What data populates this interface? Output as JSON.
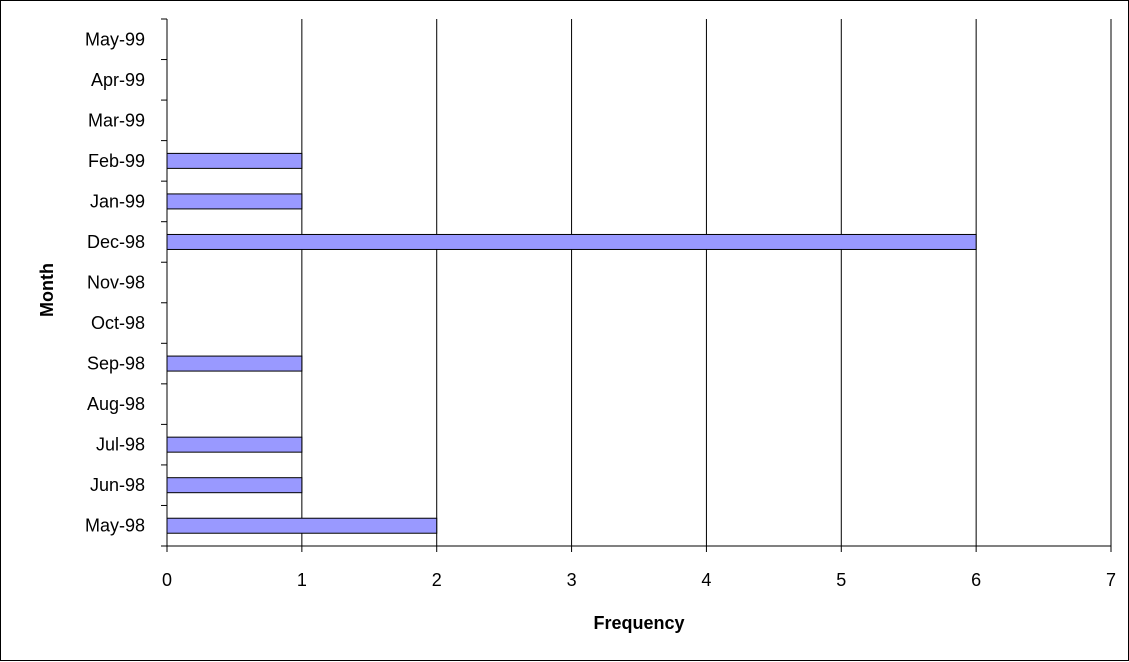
{
  "chart_data": {
    "type": "bar",
    "orientation": "horizontal",
    "categories": [
      "May-98",
      "Jun-98",
      "Jul-98",
      "Aug-98",
      "Sep-98",
      "Oct-98",
      "Nov-98",
      "Dec-98",
      "Jan-99",
      "Feb-99",
      "Mar-99",
      "Apr-99",
      "May-99"
    ],
    "values": [
      2,
      1,
      1,
      0,
      1,
      0,
      0,
      6,
      1,
      1,
      0,
      0,
      0
    ],
    "xlabel": "Frequency",
    "ylabel": "Month",
    "xlim": [
      0,
      7
    ],
    "xticks": [
      0,
      1,
      2,
      3,
      4,
      5,
      6,
      7
    ],
    "grid": "vertical gridlines at each x tick",
    "legend": "none",
    "bar_color": "#9999FF",
    "bar_edge_color": "#000000"
  }
}
